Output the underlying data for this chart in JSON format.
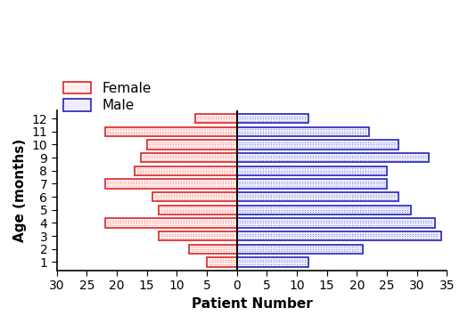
{
  "ages": [
    1,
    2,
    3,
    4,
    5,
    6,
    7,
    8,
    9,
    10,
    11,
    12
  ],
  "female": [
    5,
    8,
    13,
    22,
    13,
    14,
    22,
    17,
    16,
    15,
    22,
    7
  ],
  "male": [
    12,
    21,
    34,
    33,
    29,
    27,
    25,
    25,
    32,
    27,
    22,
    12
  ],
  "female_edge": "#DD2222",
  "male_edge": "#2222BB",
  "female_fill": "#FFEEEE",
  "male_fill": "#EEEEFF",
  "female_dot": "#FF8888",
  "male_dot": "#8888DD",
  "xlabel": "Patient Number",
  "ylabel": "Age (months)",
  "xlim": [
    -30,
    35
  ],
  "xticks": [
    -30,
    -25,
    -20,
    -15,
    -10,
    -5,
    0,
    5,
    10,
    15,
    20,
    25,
    30,
    35
  ],
  "xticklabels": [
    "30",
    "25",
    "20",
    "15",
    "10",
    "5",
    "0",
    "5",
    "10",
    "15",
    "20",
    "25",
    "30",
    "35"
  ],
  "ylim": [
    0.35,
    12.65
  ],
  "bar_height": 0.7,
  "legend_female": "Female",
  "legend_male": "Male",
  "label_fontsize": 11,
  "tick_fontsize": 10,
  "legend_fontsize": 11
}
